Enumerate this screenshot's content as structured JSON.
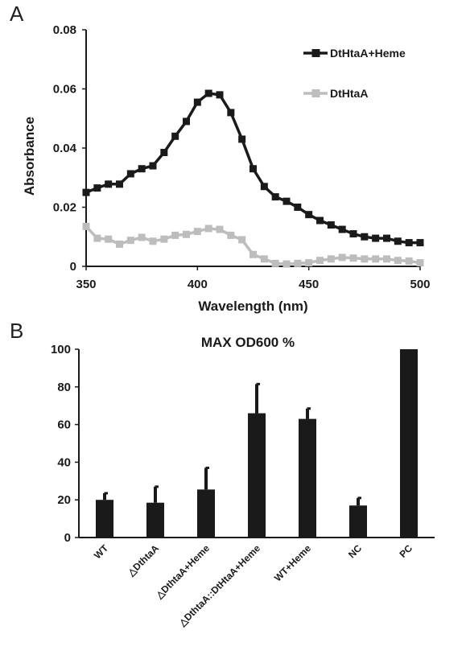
{
  "chart_data": [
    {
      "panel": "A",
      "type": "line",
      "xlabel": "Wavelength (nm)",
      "ylabel": "Absorbance",
      "xlim": [
        350,
        500
      ],
      "ylim": [
        0,
        0.08
      ],
      "x_ticks": [
        "350",
        "400",
        "450",
        "500"
      ],
      "y_ticks": [
        "0",
        "0.02",
        "0.04",
        "0.06",
        "0.08"
      ],
      "legend_position": "top-right",
      "series": [
        {
          "name": "DtHtaA+Heme",
          "color": "#1a1a1a",
          "x": [
            350,
            355,
            360,
            365,
            370,
            375,
            380,
            385,
            390,
            395,
            400,
            405,
            410,
            415,
            420,
            425,
            430,
            435,
            440,
            445,
            450,
            455,
            460,
            465,
            470,
            475,
            480,
            485,
            490,
            495,
            500
          ],
          "values": [
            0.025,
            0.0265,
            0.0278,
            0.0278,
            0.0313,
            0.033,
            0.034,
            0.0385,
            0.044,
            0.049,
            0.0555,
            0.0585,
            0.058,
            0.052,
            0.043,
            0.033,
            0.027,
            0.0235,
            0.022,
            0.02,
            0.0175,
            0.0155,
            0.014,
            0.0125,
            0.011,
            0.01,
            0.0095,
            0.0095,
            0.0085,
            0.008,
            0.008
          ]
        },
        {
          "name": "DtHtaA",
          "color": "#bdbdbd",
          "x": [
            350,
            355,
            360,
            365,
            370,
            375,
            380,
            385,
            390,
            395,
            400,
            405,
            410,
            415,
            420,
            425,
            430,
            435,
            440,
            445,
            450,
            455,
            460,
            465,
            470,
            475,
            480,
            485,
            490,
            495,
            500
          ],
          "values": [
            0.0135,
            0.0095,
            0.0092,
            0.0075,
            0.0088,
            0.0098,
            0.0085,
            0.0092,
            0.0105,
            0.0108,
            0.0118,
            0.0128,
            0.0125,
            0.0105,
            0.009,
            0.004,
            0.0025,
            0.001,
            0.0008,
            0.001,
            0.0012,
            0.002,
            0.0025,
            0.003,
            0.0028,
            0.0025,
            0.0025,
            0.0025,
            0.002,
            0.0018,
            0.0012
          ]
        }
      ]
    },
    {
      "panel": "B",
      "type": "bar",
      "title": "MAX OD600 %",
      "ylim": [
        0,
        100
      ],
      "y_ticks": [
        "0",
        "20",
        "40",
        "60",
        "80",
        "100"
      ],
      "categories": [
        "WT",
        "△DthtaA",
        "△DthtaA+Heme",
        "△DthtaA::DtHtaA+Heme",
        "WT+Heme",
        "NC",
        "PC"
      ],
      "values": [
        20,
        18.5,
        25.5,
        66,
        63,
        17,
        100
      ],
      "errors": [
        3.5,
        8.5,
        11.5,
        15.5,
        5.5,
        4,
        0
      ],
      "color": "#1a1a1a"
    }
  ]
}
